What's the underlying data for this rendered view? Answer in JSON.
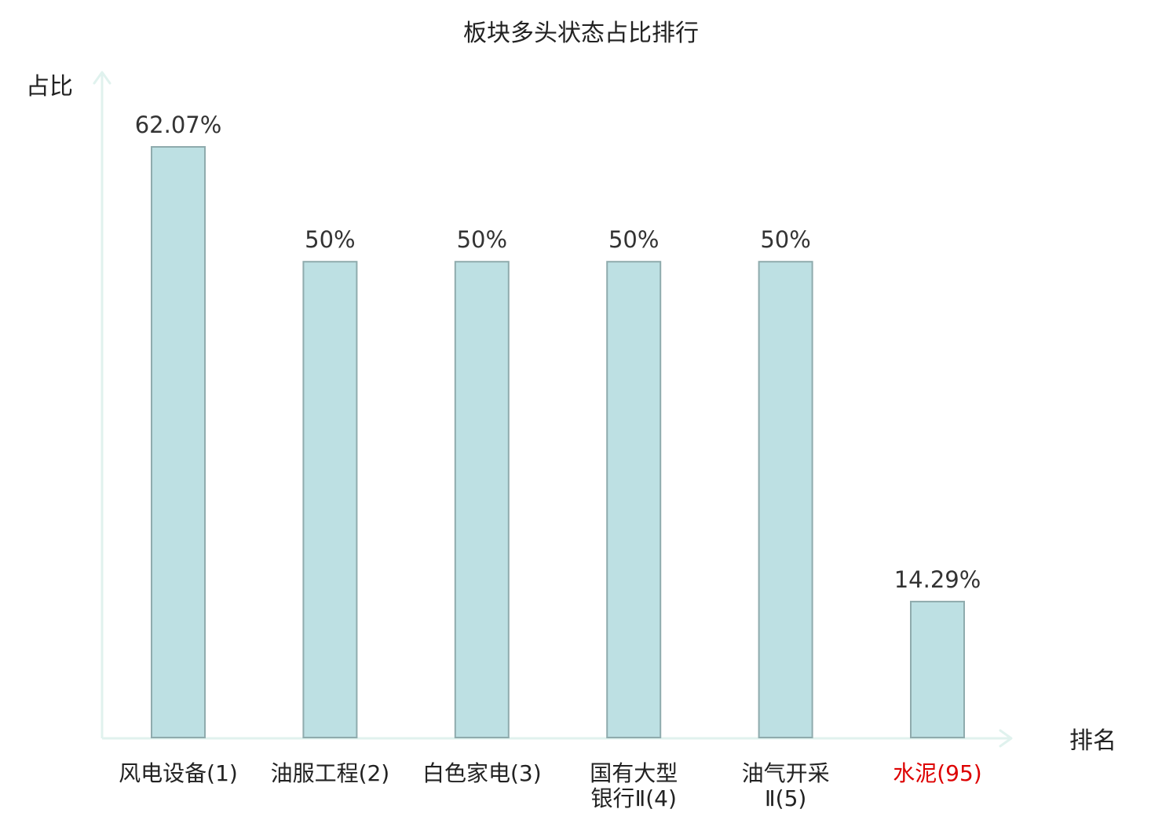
{
  "chart_data": {
    "type": "bar",
    "title": "板块多头状态占比排行",
    "ylabel": "占比",
    "xlabel": "排名",
    "categories": [
      [
        "风电设备(1)"
      ],
      [
        "油服工程(2)"
      ],
      [
        "白色家电(3)"
      ],
      [
        "国有大型",
        "银行Ⅱ(4)"
      ],
      [
        "油气开采",
        "Ⅱ(5)"
      ],
      [
        "水泥(95)"
      ]
    ],
    "values": [
      62.07,
      50,
      50,
      50,
      50,
      14.29
    ],
    "value_labels": [
      "62.07%",
      "50%",
      "50%",
      "50%",
      "50%",
      "14.29%"
    ],
    "highlight_category_index": 5,
    "ylim": [
      0,
      62.07
    ],
    "grid": false,
    "colors": {
      "bar_fill": "#bde0e3",
      "bar_stroke": "#8fabad",
      "axis": "#e0f2ee",
      "text": "#333333",
      "highlight_text": "#dd0000"
    }
  }
}
